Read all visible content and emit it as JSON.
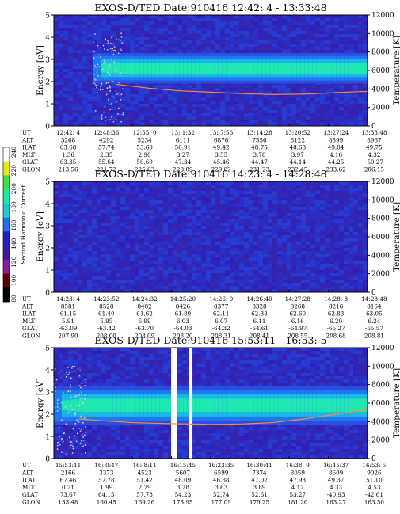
{
  "chart_data": [
    {
      "type": "heatmap",
      "title": "EXOS-D/TED   Date:910416  12:42: 4 - 13:33:48",
      "ylabel": "Energy [eV]",
      "y2label": "Temperature [K]",
      "ylim": [
        0,
        5
      ],
      "y2lim": [
        0,
        12000
      ],
      "yticks": [
        "0",
        "1",
        "2",
        "3",
        "4",
        "5"
      ],
      "y2ticks": [
        "0",
        "2000",
        "4000",
        "6000",
        "8000",
        "10000",
        "12000"
      ],
      "band": {
        "center_ev": 2.6,
        "halfwidth_ev": 0.55,
        "core_ev": 0.25,
        "onset_frac": 0.12,
        "scatter_ev": 4.0
      },
      "temperature_series": [
        {
          "t": 0.2,
          "k": 4500
        },
        {
          "t": 0.3,
          "k": 4100
        },
        {
          "t": 0.4,
          "k": 3800
        },
        {
          "t": 0.5,
          "k": 3650
        },
        {
          "t": 0.6,
          "k": 3500
        },
        {
          "t": 0.7,
          "k": 3400
        },
        {
          "t": 0.8,
          "k": 3450
        },
        {
          "t": 0.9,
          "k": 3600
        },
        {
          "t": 1.0,
          "k": 3750
        }
      ],
      "table": {
        "row_labels": [
          "UT",
          "ALT",
          "ILAT",
          "MLT",
          "GLAT",
          "GLON"
        ],
        "columns": [
          [
            "12:42: 4",
            "3268",
            "63.68",
            "1.36",
            "63.35",
            "213.56"
          ],
          [
            "12:48:36",
            "4292",
            "57.74",
            "2.35",
            "55.64",
            "221.72"
          ],
          [
            "12:55: 0",
            "5234",
            "53.60",
            "2.90",
            "50.60",
            "225.63"
          ],
          [
            "13: 1:32",
            "6111",
            "50.91",
            "3.27",
            "47.34",
            "228.09"
          ],
          [
            "13: 7:56",
            "6876",
            "49.42",
            "3.55",
            "45.46",
            "229.82"
          ],
          [
            "13:14:28",
            "7556",
            "48.75",
            "3.78",
            "44.47",
            "231.23"
          ],
          [
            "13:20:52",
            "8122",
            "48.68",
            "3.97",
            "44.14",
            "232.45"
          ],
          [
            "13:27:24",
            "8599",
            "49.04",
            "4.16",
            "44.25",
            "233.62"
          ],
          [
            "13:33:48",
            "8967",
            "49.75",
            "4.32",
            "-50.27",
            "206.15"
          ]
        ]
      }
    },
    {
      "type": "heatmap",
      "title": "EXOS-D/TED   Date:910416  14:23: 4 - 14:28:48",
      "ylabel": "Energy [eV]",
      "y2label": "Temperature [K]",
      "ylim": [
        0,
        5
      ],
      "y2lim": [
        0,
        12000
      ],
      "yticks": [
        "0",
        "1",
        "2",
        "3",
        "4",
        "5"
      ],
      "y2ticks": [
        "0",
        "2000",
        "4000",
        "6000",
        "8000",
        "10000",
        "12000"
      ],
      "band": null,
      "temperature_series": [],
      "table": {
        "row_labels": [
          "UT",
          "ALT",
          "ILAT",
          "MLT",
          "GLAT",
          "GLON"
        ],
        "columns": [
          [
            "14:23: 4",
            "8581",
            "61.15",
            "5.91",
            "-63.09",
            "207.90"
          ],
          [
            "14:23:52",
            "8528",
            "61.40",
            "5.95",
            "-63.42",
            "208.00"
          ],
          [
            "14:24:32",
            "8482",
            "61.62",
            "5.99",
            "-63.70",
            "208.09"
          ],
          [
            "14:25:20",
            "8426",
            "61.89",
            "6.03",
            "-64.03",
            "208.20"
          ],
          [
            "14:26: 0",
            "8377",
            "62.11",
            "6.07",
            "-64.32",
            "208.31"
          ],
          [
            "14:26:40",
            "8328",
            "62.33",
            "6.11",
            "-64.61",
            "208.41"
          ],
          [
            "14:27:28",
            "8268",
            "62.60",
            "6.16",
            "-64.97",
            "208.55"
          ],
          [
            "14:28: 8",
            "8216",
            "62.83",
            "6.20",
            "-65.27",
            "208.68"
          ],
          [
            "14:28:48",
            "8164",
            "63.05",
            "6.24",
            "-65.57",
            "208.81"
          ]
        ]
      }
    },
    {
      "type": "heatmap",
      "title": "EXOS-D/TED   Date:910416  15:53:11 - 16:53: 5",
      "ylabel": "Energy [eV]",
      "y2label": "Temperature [K]",
      "ylim": [
        0,
        5
      ],
      "y2lim": [
        0,
        12000
      ],
      "yticks": [
        "0",
        "1",
        "2",
        "3",
        "4",
        "5"
      ],
      "y2ticks": [
        "0",
        "2000",
        "4000",
        "6000",
        "8000",
        "10000",
        "12000"
      ],
      "band": {
        "center_ev": 2.4,
        "halfwidth_ev": 0.7,
        "core_ev": 0.3,
        "onset_frac": 0.0,
        "scatter_ev": 4.0
      },
      "data_gaps": [
        [
          0.374,
          0.392
        ],
        [
          0.432,
          0.442
        ]
      ],
      "temperature_series": [
        {
          "t": 0.08,
          "k": 4300
        },
        {
          "t": 0.15,
          "k": 4100
        },
        {
          "t": 0.25,
          "k": 3900
        },
        {
          "t": 0.35,
          "k": 3800
        },
        {
          "t": 0.5,
          "k": 3700
        },
        {
          "t": 0.6,
          "k": 3750
        },
        {
          "t": 0.7,
          "k": 3900
        },
        {
          "t": 0.8,
          "k": 4300
        },
        {
          "t": 0.9,
          "k": 4800
        },
        {
          "t": 1.0,
          "k": 5300
        }
      ],
      "table": {
        "row_labels": [
          "UT",
          "ALT",
          "ILAT",
          "MLT",
          "GLAT",
          "GLON"
        ],
        "columns": [
          [
            "15:53:11",
            "2166",
            "67.46",
            "0.21",
            "73.67",
            "133.48"
          ],
          [
            "16: 0:47",
            "3373",
            "57.78",
            "1.99",
            "64.15",
            "160.45"
          ],
          [
            "16: 8:11",
            "4523",
            "51.42",
            "2.79",
            "57.78",
            "169.26"
          ],
          [
            "16:15:45",
            "5607",
            "48.09",
            "3.28",
            "54.23",
            "173.95"
          ],
          [
            "16:23:35",
            "6599",
            "46.88",
            "3.63",
            "52.74",
            "177.09"
          ],
          [
            "16:30:41",
            "7374",
            "47.02",
            "3.89",
            "52.61",
            "179.25"
          ],
          [
            "16:38: 9",
            "8059",
            "47.93",
            "4.12",
            "53.27",
            "181.20"
          ],
          [
            "16:45:37",
            "8609",
            "49.37",
            "4.33",
            "-40.93",
            "163.27"
          ],
          [
            "16:53: 5",
            "9026",
            "51.10",
            "4.53",
            "-42.61",
            "163.50"
          ]
        ]
      }
    }
  ],
  "colorbar": {
    "label": "Second Harmonic Current",
    "ticks": [
      "80",
      "100",
      "120",
      "140",
      "160",
      "180",
      "200",
      "220",
      "240"
    ],
    "colors": [
      "#000000",
      "#5a0000",
      "#8a1a9a",
      "#3d1a9a",
      "#2020c8",
      "#1e6ef0",
      "#20c8d8",
      "#20e8a0",
      "#40e040",
      "#e8e820",
      "#ffffff"
    ]
  }
}
